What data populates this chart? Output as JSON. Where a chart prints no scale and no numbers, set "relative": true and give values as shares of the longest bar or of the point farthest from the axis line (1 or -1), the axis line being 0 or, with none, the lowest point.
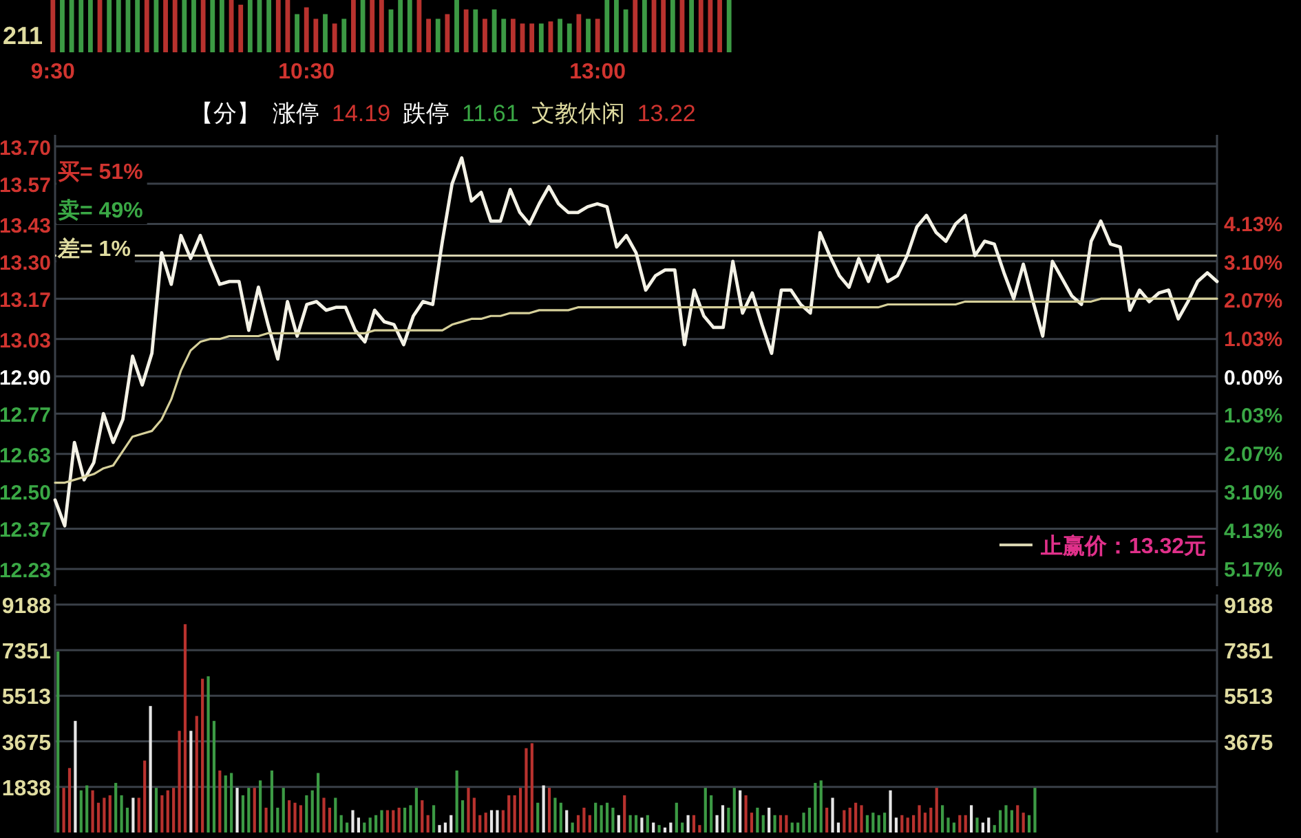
{
  "chart_data": [
    {
      "type": "bar",
      "relative": true,
      "categories": [
        "9:30",
        null,
        null,
        null,
        null,
        null,
        null,
        null,
        null,
        null,
        null,
        null,
        null,
        null,
        null,
        null,
        null,
        null,
        null,
        null,
        null,
        null,
        null,
        null,
        null,
        null,
        null,
        "10:30",
        null,
        null,
        null,
        null,
        null,
        null,
        null,
        null,
        null,
        null,
        null,
        null,
        null,
        null,
        null,
        null,
        null,
        null,
        null,
        null,
        null,
        null,
        null,
        null,
        null,
        null,
        null,
        null,
        null,
        null,
        "13:00",
        null,
        null,
        null,
        null,
        null,
        null,
        null,
        null,
        null,
        null,
        null,
        null,
        null,
        null
      ],
      "values": [
        1,
        1,
        1,
        1,
        1,
        1,
        1,
        1,
        1,
        1,
        1,
        1,
        1,
        1,
        1,
        1,
        1,
        1,
        1,
        1,
        0.91,
        1,
        1,
        1,
        1,
        1,
        0.73,
        0.86,
        0.64,
        0.73,
        0.55,
        0.64,
        1,
        1,
        1,
        1,
        0.82,
        1,
        1,
        1,
        0.64,
        0.64,
        0.73,
        1,
        0.82,
        0.82,
        0.64,
        0.82,
        0.64,
        0.64,
        0.55,
        0.55,
        0.55,
        0.59,
        0.64,
        0.55,
        0.73,
        0.64,
        0.64,
        1,
        1,
        0.82,
        1,
        1,
        1,
        1,
        1,
        1,
        1,
        1,
        1,
        1,
        1
      ],
      "colors": [
        "#b8322e",
        "#3c9a44",
        "#3c9a44",
        "#3c9a44",
        "#3c9a44",
        "#b8322e",
        "#3c9a44",
        "#3c9a44",
        "#3c9a44",
        "#3c9a44",
        "#b8322e",
        "#3c9a44",
        "#b8322e",
        "#b8322e",
        "#3c9a44",
        "#3c9a44",
        "#b8322e",
        "#3c9a44",
        "#3c9a44",
        "#b8322e",
        "#b8322e",
        "#3c9a44",
        "#3c9a44",
        "#3c9a44",
        "#b8322e",
        "#b8322e",
        "#3c9a44",
        "#b8322e",
        "#b8322e",
        "#3c9a44",
        "#b8322e",
        "#3c9a44",
        "#b8322e",
        "#3c9a44",
        "#b8322e",
        "#b8322e",
        "#3c9a44",
        "#3c9a44",
        "#3c9a44",
        "#b8322e",
        "#b8322e",
        "#3c9a44",
        "#b8322e",
        "#3c9a44",
        "#b8322e",
        "#3c9a44",
        "#b8322e",
        "#3c9a44",
        "#3c9a44",
        "#b8322e",
        "#b8322e",
        "#b8322e",
        "#3c9a44",
        "#b8322e",
        "#3c9a44",
        "#3c9a44",
        "#b8322e",
        "#3c9a44",
        "#b8322e",
        "#3c9a44",
        "#3c9a44",
        "#3c9a44",
        "#b8322e",
        "#3c9a44",
        "#b8322e",
        "#b8322e",
        "#3c9a44",
        "#b8322e",
        "#3c9a44",
        "#b8322e",
        "#b8322e",
        "#b8322e",
        "#3c9a44"
      ],
      "annotations": [
        "211"
      ]
    },
    {
      "type": "line",
      "ylim": [
        12.17,
        13.74
      ],
      "y2lim": [
        -5.66,
        6.51
      ],
      "grid": "y",
      "categories": [
        null,
        null,
        null,
        null,
        null,
        null,
        null,
        null,
        null,
        null,
        null,
        null,
        null,
        null,
        null,
        null,
        null,
        null,
        null,
        null,
        null,
        null,
        null,
        null,
        null,
        null,
        null,
        null,
        null,
        null,
        null,
        null,
        null,
        null,
        null,
        null,
        null,
        null,
        null,
        null,
        null,
        null,
        null,
        null,
        null,
        null,
        null,
        null,
        null,
        null,
        null,
        null,
        null,
        null,
        null,
        null,
        null,
        null,
        null,
        null,
        null,
        null,
        null,
        null,
        null,
        null,
        null,
        null,
        null,
        null,
        null,
        null,
        null,
        null,
        null,
        null,
        null,
        null,
        null,
        null,
        null,
        null,
        null,
        null,
        null,
        null,
        null,
        null,
        null,
        null,
        null,
        null,
        null,
        null,
        null,
        null,
        null,
        null,
        null,
        null,
        null,
        null,
        null,
        null,
        null,
        null,
        null,
        null,
        null,
        null,
        null,
        null,
        null,
        null,
        null,
        null,
        null,
        null,
        null,
        null,
        null
      ],
      "yticks": [
        {
          "value": 13.7,
          "label": "13.70"
        },
        {
          "value": 13.57,
          "label": "13.57"
        },
        {
          "value": 13.43,
          "label": "13.43"
        },
        {
          "value": 13.3,
          "label": "13.30"
        },
        {
          "value": 13.17,
          "label": "13.17"
        },
        {
          "value": 13.03,
          "label": "13.03"
        },
        {
          "value": 12.9,
          "label": "12.90"
        },
        {
          "value": 12.77,
          "label": "12.77"
        },
        {
          "value": 12.63,
          "label": "12.63"
        },
        {
          "value": 12.5,
          "label": "12.50"
        },
        {
          "value": 12.37,
          "label": "12.37"
        },
        {
          "value": 12.23,
          "label": "12.23"
        }
      ],
      "y2ticks": [
        {
          "value": 4.13,
          "label": "4.13%"
        },
        {
          "value": 3.1,
          "label": "3.10%"
        },
        {
          "value": 2.07,
          "label": "2.07%"
        },
        {
          "value": 1.03,
          "label": "1.03%"
        },
        {
          "value": 0,
          "label": "0.00%"
        },
        {
          "value": -1.03,
          "label": "1.03%"
        },
        {
          "value": -2.07,
          "label": "2.07%"
        },
        {
          "value": -3.1,
          "label": "3.10%"
        },
        {
          "value": -4.13,
          "label": "4.13%"
        },
        {
          "value": -5.17,
          "label": "5.17%"
        }
      ],
      "series": [
        {
          "color": "#f4f2e6",
          "values": [
            12.47,
            12.38,
            12.67,
            12.54,
            12.6,
            12.77,
            12.67,
            12.75,
            12.97,
            12.87,
            12.98,
            13.33,
            13.22,
            13.39,
            13.31,
            13.39,
            13.3,
            13.22,
            13.23,
            13.23,
            13.06,
            13.21,
            13.08,
            12.96,
            13.16,
            13.04,
            13.15,
            13.16,
            13.13,
            13.14,
            13.14,
            13.06,
            13.02,
            13.13,
            13.09,
            13.08,
            13.01,
            13.11,
            13.16,
            13.15,
            13.37,
            13.57,
            13.66,
            13.51,
            13.54,
            13.44,
            13.44,
            13.55,
            13.47,
            13.43,
            13.5,
            13.56,
            13.5,
            13.47,
            13.47,
            13.49,
            13.5,
            13.49,
            13.35,
            13.39,
            13.33,
            13.2,
            13.25,
            13.27,
            13.27,
            13.01,
            13.2,
            13.11,
            13.07,
            13.07,
            13.3,
            13.12,
            13.19,
            13.08,
            12.98,
            13.2,
            13.2,
            13.15,
            13.12,
            13.4,
            13.32,
            13.25,
            13.21,
            13.31,
            13.23,
            13.32,
            13.23,
            13.25,
            13.32,
            13.42,
            13.46,
            13.4,
            13.37,
            13.43,
            13.46,
            13.32,
            13.37,
            13.36,
            13.26,
            13.17,
            13.29,
            13.16,
            13.04,
            13.3,
            13.24,
            13.18,
            13.15,
            13.37,
            13.44,
            13.36,
            13.35,
            13.13,
            13.2,
            13.16,
            13.19,
            13.2,
            13.1,
            13.16,
            13.23,
            13.26,
            13.23
          ]
        },
        {
          "color": "#d6d09a",
          "values": [
            12.53,
            12.53,
            12.54,
            12.55,
            12.56,
            12.58,
            12.59,
            12.64,
            12.69,
            12.7,
            12.71,
            12.75,
            12.82,
            12.92,
            12.99,
            13.02,
            13.03,
            13.03,
            13.04,
            13.04,
            13.04,
            13.04,
            13.05,
            13.05,
            13.05,
            13.05,
            13.05,
            13.05,
            13.05,
            13.05,
            13.05,
            13.05,
            13.05,
            13.06,
            13.06,
            13.06,
            13.06,
            13.06,
            13.06,
            13.06,
            13.06,
            13.08,
            13.09,
            13.1,
            13.1,
            13.11,
            13.11,
            13.12,
            13.12,
            13.12,
            13.13,
            13.13,
            13.13,
            13.13,
            13.14,
            13.14,
            13.14,
            13.14,
            13.14,
            13.14,
            13.14,
            13.14,
            13.14,
            13.14,
            13.14,
            13.14,
            13.14,
            13.14,
            13.14,
            13.14,
            13.14,
            13.14,
            13.14,
            13.14,
            13.14,
            13.14,
            13.14,
            13.14,
            13.14,
            13.14,
            13.14,
            13.14,
            13.14,
            13.14,
            13.14,
            13.14,
            13.15,
            13.15,
            13.15,
            13.15,
            13.15,
            13.15,
            13.15,
            13.15,
            13.16,
            13.16,
            13.16,
            13.16,
            13.16,
            13.16,
            13.16,
            13.16,
            13.16,
            13.16,
            13.16,
            13.16,
            13.16,
            13.16,
            13.17,
            13.17,
            13.17,
            13.17,
            13.17,
            13.17,
            13.17,
            13.17,
            13.17,
            13.17,
            13.17,
            13.17,
            13.17
          ]
        }
      ],
      "ref_lines": [
        {
          "axis": "y",
          "value": 13.32,
          "label": "止赢价：13.32元",
          "color": "#d8d4b0"
        }
      ],
      "annotations": [
        "【分】",
        "涨停",
        "14.19",
        "跌停",
        "11.61",
        "文教休闲",
        "13.22",
        "买= 51%",
        "卖= 49%",
        "差= 1%"
      ]
    },
    {
      "type": "bar",
      "ylim": [
        0,
        9600
      ],
      "y2lim": [
        0,
        9600
      ],
      "grid": "y",
      "yticks": [
        1838,
        3675,
        5513,
        7351,
        9188
      ],
      "y2ticks": [
        3675,
        5513,
        7351,
        9188
      ],
      "categories": [
        null,
        null,
        null,
        null,
        null,
        null,
        null,
        null,
        null,
        null,
        null,
        null,
        null,
        null,
        null,
        null,
        null,
        null,
        null,
        null,
        null,
        null,
        null,
        null,
        null,
        null,
        null,
        null,
        null,
        null,
        null,
        null,
        null,
        null,
        null,
        null,
        null,
        null,
        null,
        null,
        null,
        null,
        null,
        null,
        null,
        null,
        null,
        null,
        null,
        null,
        null,
        null,
        null,
        null,
        null,
        null,
        null,
        null,
        null,
        null,
        null,
        null,
        null,
        null,
        null,
        null,
        null,
        null,
        null,
        null,
        null,
        null,
        null,
        null,
        null,
        null,
        null,
        null,
        null,
        null,
        null,
        null,
        null,
        null,
        null,
        null,
        null,
        null,
        null,
        null,
        null,
        null,
        null,
        null,
        null,
        null,
        null,
        null,
        null,
        null,
        null,
        null,
        null,
        null,
        null,
        null,
        null,
        null,
        null,
        null,
        null,
        null,
        null,
        null,
        null,
        null,
        null,
        null,
        null,
        null,
        null,
        null,
        null,
        null,
        null,
        null,
        null,
        null,
        null,
        null,
        null,
        null,
        null,
        null,
        null,
        null,
        null,
        null,
        null,
        null,
        null,
        null,
        null,
        null,
        null,
        null,
        null,
        null,
        null,
        null,
        null,
        null,
        null,
        null,
        null,
        null,
        null,
        null,
        null,
        null,
        null,
        null,
        null,
        null,
        null,
        null,
        null,
        null,
        null,
        null,
        null,
        null,
        null,
        null,
        null,
        null,
        null,
        null,
        null,
        null,
        null,
        null,
        null,
        null,
        null,
        null,
        null,
        null,
        null,
        null,
        null,
        null,
        null,
        null,
        null,
        null,
        null,
        null,
        null,
        null,
        null
      ],
      "values": [
        7300,
        1800,
        2600,
        4500,
        1700,
        1900,
        1700,
        1200,
        1400,
        1500,
        2000,
        1500,
        1000,
        1400,
        1400,
        2900,
        5100,
        1800,
        1500,
        1700,
        1800,
        4100,
        8400,
        4100,
        4700,
        6200,
        6300,
        4500,
        2500,
        2300,
        2400,
        1800,
        1500,
        1800,
        1800,
        2100,
        1000,
        2500,
        1000,
        1800,
        1300,
        1200,
        1100,
        1500,
        1700,
        2400,
        1400,
        1000,
        1400,
        700,
        400,
        900,
        600,
        400,
        600,
        700,
        900,
        900,
        900,
        1000,
        1000,
        1100,
        1800,
        1300,
        700,
        1100,
        300,
        400,
        700,
        2500,
        1300,
        1800,
        1400,
        700,
        800,
        900,
        900,
        900,
        1500,
        1500,
        1800,
        3400,
        3600,
        1200,
        1900,
        1800,
        1400,
        1200,
        900,
        400,
        700,
        1000,
        700,
        1200,
        1100,
        1200,
        1000,
        700,
        1500,
        700,
        700,
        600,
        700,
        400,
        300,
        200,
        400,
        1200,
        400,
        700,
        700,
        300,
        1800,
        1500,
        700,
        1100,
        1000,
        1800,
        1700,
        1500,
        800,
        1000,
        700,
        1000,
        700,
        700,
        700,
        400,
        400,
        800,
        1000,
        2000,
        2100,
        1000,
        1400,
        400,
        900,
        1000,
        1200,
        1100,
        700,
        800,
        700,
        800,
        1700,
        600,
        700,
        600,
        700,
        1100,
        800,
        1000,
        1800,
        1100,
        600,
        400,
        700,
        700,
        1100,
        600,
        400,
        600,
        300,
        900,
        1100,
        900,
        1100,
        800,
        700,
        1800,
        null,
        null,
        null,
        null,
        null,
        null,
        null,
        null,
        null,
        null,
        null,
        null,
        null,
        null,
        null,
        null,
        null,
        null,
        null,
        null,
        null,
        null,
        null,
        null,
        null,
        null,
        null,
        null,
        null,
        null,
        null
      ],
      "colors": [
        "#3c9a44",
        "#b8322e",
        "#b8322e",
        "#e6e6e6",
        "#3c9a44",
        "#3c9a44",
        "#b8322e",
        "#b8322e",
        "#b8322e",
        "#b8322e",
        "#3c9a44",
        "#3c9a44",
        "#3c9a44",
        "#e6e6e6",
        "#b8322e",
        "#b8322e",
        "#e6e6e6",
        "#3c9a44",
        "#b8322e",
        "#b8322e",
        "#b8322e",
        "#b8322e",
        "#b8322e",
        "#e6e6e6",
        "#b8322e",
        "#b8322e",
        "#3c9a44",
        "#3c9a44",
        "#b8322e",
        "#3c9a44",
        "#3c9a44",
        "#e6e6e6",
        "#3c9a44",
        "#3c9a44",
        "#b8322e",
        "#3c9a44",
        "#b8322e",
        "#3c9a44",
        "#3c9a44",
        "#3c9a44",
        "#b8322e",
        "#b8322e",
        "#b8322e",
        "#3c9a44",
        "#3c9a44",
        "#3c9a44",
        "#b8322e",
        "#b8322e",
        "#3c9a44",
        "#3c9a44",
        "#3c9a44",
        "#e6e6e6",
        "#e6e6e6",
        "#3c9a44",
        "#3c9a44",
        "#3c9a44",
        "#3c9a44",
        "#b8322e",
        "#b8322e",
        "#b8322e",
        "#3c9a44",
        "#3c9a44",
        "#3c9a44",
        "#b8322e",
        "#b8322e",
        "#3c9a44",
        "#e6e6e6",
        "#e6e6e6",
        "#e6e6e6",
        "#3c9a44",
        "#3c9a44",
        "#b8322e",
        "#b8322e",
        "#b8322e",
        "#b8322e",
        "#e6e6e6",
        "#e6e6e6",
        "#b8322e",
        "#b8322e",
        "#b8322e",
        "#b8322e",
        "#b8322e",
        "#b8322e",
        "#3c9a44",
        "#e6e6e6",
        "#b8322e",
        "#3c9a44",
        "#3c9a44",
        "#e6e6e6",
        "#3c9a44",
        "#b8322e",
        "#b8322e",
        "#b8322e",
        "#3c9a44",
        "#3c9a44",
        "#3c9a44",
        "#3c9a44",
        "#e6e6e6",
        "#b8322e",
        "#3c9a44",
        "#3c9a44",
        "#e6e6e6",
        "#3c9a44",
        "#e6e6e6",
        "#3c9a44",
        "#e6e6e6",
        "#e6e6e6",
        "#3c9a44",
        "#3c9a44",
        "#e6e6e6",
        "#b8322e",
        "#b8322e",
        "#3c9a44",
        "#3c9a44",
        "#e6e6e6",
        "#e6e6e6",
        "#3c9a44",
        "#3c9a44",
        "#e6e6e6",
        "#b8322e",
        "#b8322e",
        "#3c9a44",
        "#3c9a44",
        "#e6e6e6",
        "#3c9a44",
        "#b8322e",
        "#b8322e",
        "#3c9a44",
        "#3c9a44",
        "#3c9a44",
        "#3c9a44",
        "#3c9a44",
        "#3c9a44",
        "#b8322e",
        "#e6e6e6",
        "#e6e6e6",
        "#b8322e",
        "#b8322e",
        "#b8322e",
        "#b8322e",
        "#3c9a44",
        "#3c9a44",
        "#3c9a44",
        "#3c9a44",
        "#e6e6e6",
        "#e6e6e6",
        "#b8322e",
        "#b8322e",
        "#b8322e",
        "#b8322e",
        "#b8322e",
        "#b8322e",
        "#b8322e",
        "#3c9a44",
        "#3c9a44",
        "#3c9a44",
        "#b8322e",
        "#b8322e",
        "#e6e6e6",
        "#3c9a44",
        "#e6e6e6",
        "#e6e6e6",
        "#3c9a44",
        "#3c9a44",
        "#3c9a44",
        "#3c9a44",
        "#b8322e",
        "#b8322e",
        "#3c9a44",
        "#3c9a44",
        null,
        null,
        null,
        null,
        null,
        null,
        null,
        null,
        null,
        null,
        null,
        null,
        null,
        null,
        null,
        null,
        null,
        null,
        null,
        null,
        null,
        null,
        null,
        null,
        null,
        null,
        null,
        null,
        null,
        null,
        null
      ]
    }
  ]
}
